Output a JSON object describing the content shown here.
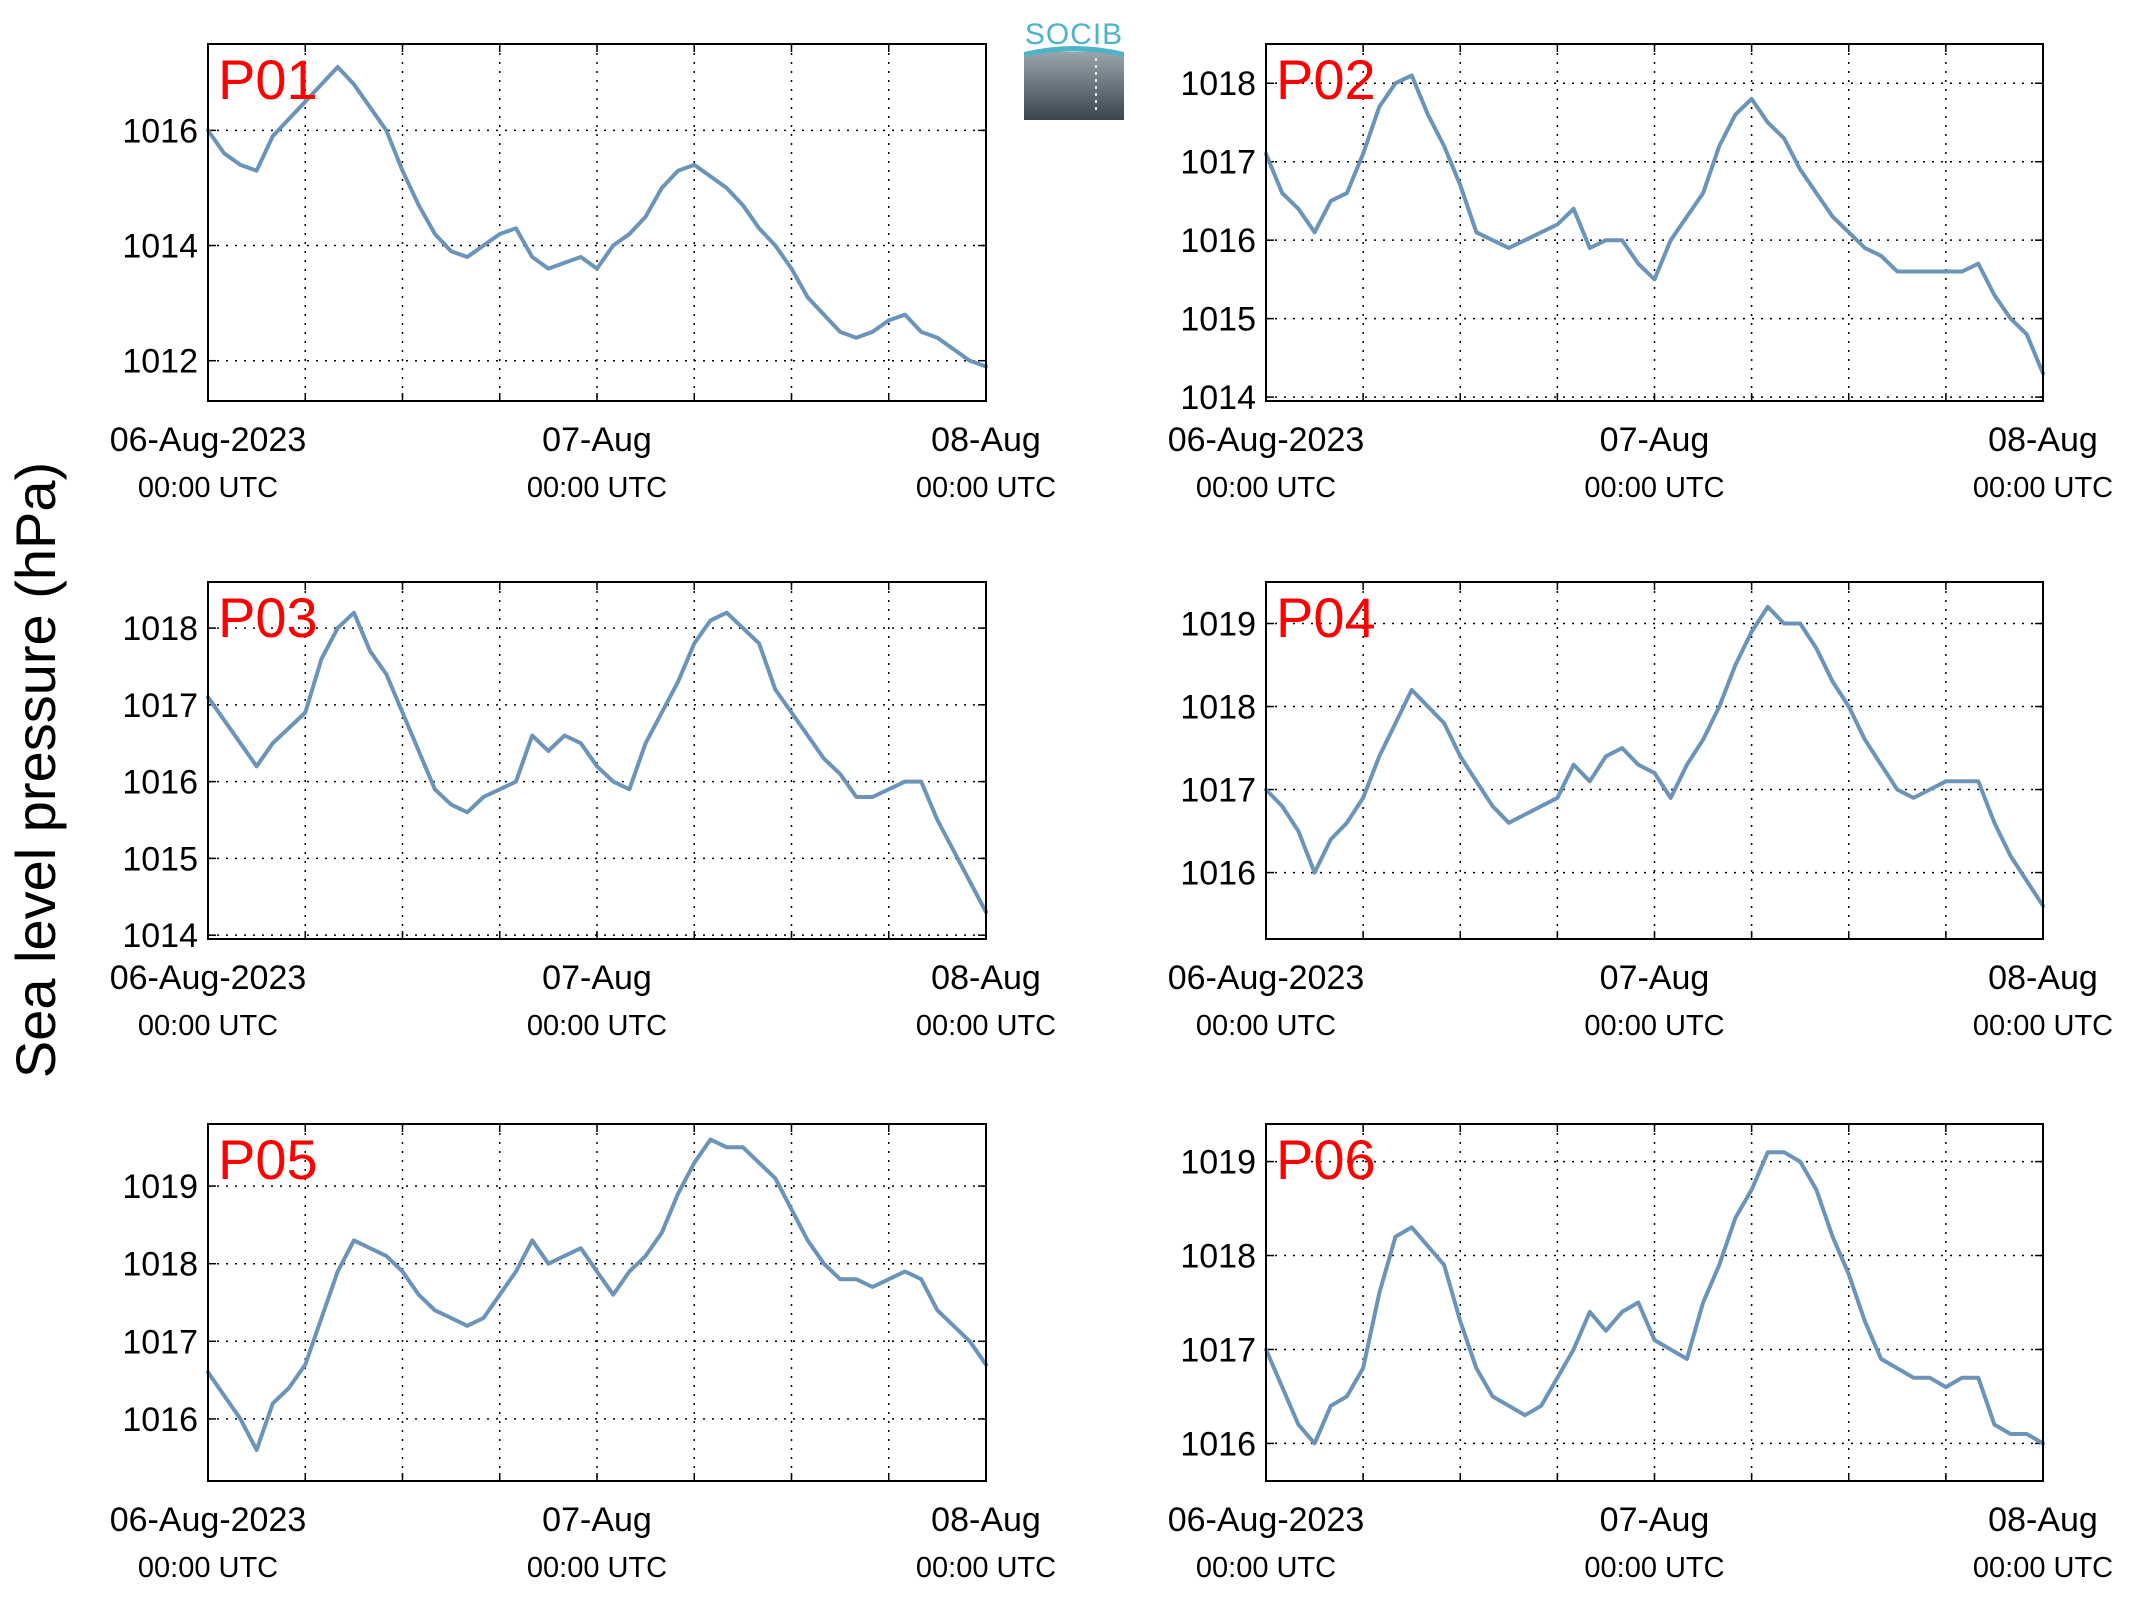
{
  "ylabel": "Sea level pressure (hPa)",
  "logo_text": "SOCIB",
  "colors": {
    "line": "#6b94b8",
    "panel_label": "#ff0000"
  },
  "x_tick_labels": [
    {
      "date": "06-Aug-2023",
      "time": "00:00 UTC"
    },
    {
      "date": "07-Aug",
      "time": "00:00 UTC"
    },
    {
      "date": "08-Aug",
      "time": "00:00 UTC"
    }
  ],
  "chart_data": [
    {
      "type": "line",
      "title": "P01",
      "xlim": [
        0,
        48
      ],
      "ylim": [
        1011.3,
        1017.5
      ],
      "yticks": [
        1012,
        1014,
        1016
      ],
      "x": [
        0,
        1,
        2,
        3,
        4,
        5,
        6,
        7,
        8,
        9,
        10,
        11,
        12,
        13,
        14,
        15,
        16,
        17,
        18,
        19,
        20,
        21,
        22,
        23,
        24,
        25,
        26,
        27,
        28,
        29,
        30,
        31,
        32,
        33,
        34,
        35,
        36,
        37,
        38,
        39,
        40,
        41,
        42,
        43,
        44,
        45,
        46,
        47,
        48
      ],
      "y": [
        1016.0,
        1015.6,
        1015.4,
        1015.3,
        1015.9,
        1016.2,
        1016.5,
        1016.8,
        1017.1,
        1016.8,
        1016.4,
        1016.0,
        1015.3,
        1014.7,
        1014.2,
        1013.9,
        1013.8,
        1014.0,
        1014.2,
        1014.3,
        1013.8,
        1013.6,
        1013.7,
        1013.8,
        1013.6,
        1014.0,
        1014.2,
        1014.5,
        1015.0,
        1015.3,
        1015.4,
        1015.2,
        1015.0,
        1014.7,
        1014.3,
        1014.0,
        1013.6,
        1013.1,
        1012.8,
        1012.5,
        1012.4,
        1012.5,
        1012.7,
        1012.8,
        1012.5,
        1012.4,
        1012.2,
        1012.0,
        1011.9
      ]
    },
    {
      "type": "line",
      "title": "P02",
      "xlim": [
        0,
        48
      ],
      "ylim": [
        1013.95,
        1018.5
      ],
      "yticks": [
        1014,
        1015,
        1016,
        1017,
        1018
      ],
      "x": [
        0,
        1,
        2,
        3,
        4,
        5,
        6,
        7,
        8,
        9,
        10,
        11,
        12,
        13,
        14,
        15,
        16,
        17,
        18,
        19,
        20,
        21,
        22,
        23,
        24,
        25,
        26,
        27,
        28,
        29,
        30,
        31,
        32,
        33,
        34,
        35,
        36,
        37,
        38,
        39,
        40,
        41,
        42,
        43,
        44,
        45,
        46,
        47,
        48
      ],
      "y": [
        1017.1,
        1016.6,
        1016.4,
        1016.1,
        1016.5,
        1016.6,
        1017.1,
        1017.7,
        1018.0,
        1018.1,
        1017.6,
        1017.2,
        1016.7,
        1016.1,
        1016.0,
        1015.9,
        1016.0,
        1016.1,
        1016.2,
        1016.4,
        1015.9,
        1016.0,
        1016.0,
        1015.7,
        1015.5,
        1016.0,
        1016.3,
        1016.6,
        1017.2,
        1017.6,
        1017.8,
        1017.5,
        1017.3,
        1016.9,
        1016.6,
        1016.3,
        1016.1,
        1015.9,
        1015.8,
        1015.6,
        1015.6,
        1015.6,
        1015.6,
        1015.6,
        1015.7,
        1015.3,
        1015.0,
        1014.8,
        1014.3
      ]
    },
    {
      "type": "line",
      "title": "P03",
      "xlim": [
        0,
        48
      ],
      "ylim": [
        1013.95,
        1018.6
      ],
      "yticks": [
        1014,
        1015,
        1016,
        1017,
        1018
      ],
      "x": [
        0,
        1,
        2,
        3,
        4,
        5,
        6,
        7,
        8,
        9,
        10,
        11,
        12,
        13,
        14,
        15,
        16,
        17,
        18,
        19,
        20,
        21,
        22,
        23,
        24,
        25,
        26,
        27,
        28,
        29,
        30,
        31,
        32,
        33,
        34,
        35,
        36,
        37,
        38,
        39,
        40,
        41,
        42,
        43,
        44,
        45,
        46,
        47,
        48
      ],
      "y": [
        1017.1,
        1016.8,
        1016.5,
        1016.2,
        1016.5,
        1016.7,
        1016.9,
        1017.6,
        1018.0,
        1018.2,
        1017.7,
        1017.4,
        1016.9,
        1016.4,
        1015.9,
        1015.7,
        1015.6,
        1015.8,
        1015.9,
        1016.0,
        1016.6,
        1016.4,
        1016.6,
        1016.5,
        1016.2,
        1016.0,
        1015.9,
        1016.5,
        1016.9,
        1017.3,
        1017.8,
        1018.1,
        1018.2,
        1018.0,
        1017.8,
        1017.2,
        1016.9,
        1016.6,
        1016.3,
        1016.1,
        1015.8,
        1015.8,
        1015.9,
        1016.0,
        1016.0,
        1015.5,
        1015.1,
        1014.7,
        1014.3
      ]
    },
    {
      "type": "line",
      "title": "P04",
      "xlim": [
        0,
        48
      ],
      "ylim": [
        1015.2,
        1019.5
      ],
      "yticks": [
        1016,
        1017,
        1018,
        1019
      ],
      "x": [
        0,
        1,
        2,
        3,
        4,
        5,
        6,
        7,
        8,
        9,
        10,
        11,
        12,
        13,
        14,
        15,
        16,
        17,
        18,
        19,
        20,
        21,
        22,
        23,
        24,
        25,
        26,
        27,
        28,
        29,
        30,
        31,
        32,
        33,
        34,
        35,
        36,
        37,
        38,
        39,
        40,
        41,
        42,
        43,
        44,
        45,
        46,
        47,
        48
      ],
      "y": [
        1017.0,
        1016.8,
        1016.5,
        1016.0,
        1016.4,
        1016.6,
        1016.9,
        1017.4,
        1017.8,
        1018.2,
        1018.0,
        1017.8,
        1017.4,
        1017.1,
        1016.8,
        1016.6,
        1016.7,
        1016.8,
        1016.9,
        1017.3,
        1017.1,
        1017.4,
        1017.5,
        1017.3,
        1017.2,
        1016.9,
        1017.3,
        1017.6,
        1018.0,
        1018.5,
        1018.9,
        1019.2,
        1019.0,
        1019.0,
        1018.7,
        1018.3,
        1018.0,
        1017.6,
        1017.3,
        1017.0,
        1016.9,
        1017.0,
        1017.1,
        1017.1,
        1017.1,
        1016.6,
        1016.2,
        1015.9,
        1015.6
      ]
    },
    {
      "type": "line",
      "title": "P05",
      "xlim": [
        0,
        48
      ],
      "ylim": [
        1015.2,
        1019.8
      ],
      "yticks": [
        1016,
        1017,
        1018,
        1019
      ],
      "x": [
        0,
        1,
        2,
        3,
        4,
        5,
        6,
        7,
        8,
        9,
        10,
        11,
        12,
        13,
        14,
        15,
        16,
        17,
        18,
        19,
        20,
        21,
        22,
        23,
        24,
        25,
        26,
        27,
        28,
        29,
        30,
        31,
        32,
        33,
        34,
        35,
        36,
        37,
        38,
        39,
        40,
        41,
        42,
        43,
        44,
        45,
        46,
        47,
        48
      ],
      "y": [
        1016.6,
        1016.3,
        1016.0,
        1015.6,
        1016.2,
        1016.4,
        1016.7,
        1017.3,
        1017.9,
        1018.3,
        1018.2,
        1018.1,
        1017.9,
        1017.6,
        1017.4,
        1017.3,
        1017.2,
        1017.3,
        1017.6,
        1017.9,
        1018.3,
        1018.0,
        1018.1,
        1018.2,
        1017.9,
        1017.6,
        1017.9,
        1018.1,
        1018.4,
        1018.9,
        1019.3,
        1019.6,
        1019.5,
        1019.5,
        1019.3,
        1019.1,
        1018.7,
        1018.3,
        1018.0,
        1017.8,
        1017.8,
        1017.7,
        1017.8,
        1017.9,
        1017.8,
        1017.4,
        1017.2,
        1017.0,
        1016.7
      ]
    },
    {
      "type": "line",
      "title": "P06",
      "xlim": [
        0,
        48
      ],
      "ylim": [
        1015.6,
        1019.4
      ],
      "yticks": [
        1016,
        1017,
        1018,
        1019
      ],
      "x": [
        0,
        1,
        2,
        3,
        4,
        5,
        6,
        7,
        8,
        9,
        10,
        11,
        12,
        13,
        14,
        15,
        16,
        17,
        18,
        19,
        20,
        21,
        22,
        23,
        24,
        25,
        26,
        27,
        28,
        29,
        30,
        31,
        32,
        33,
        34,
        35,
        36,
        37,
        38,
        39,
        40,
        41,
        42,
        43,
        44,
        45,
        46,
        47,
        48
      ],
      "y": [
        1017.0,
        1016.6,
        1016.2,
        1016.0,
        1016.4,
        1016.5,
        1016.8,
        1017.6,
        1018.2,
        1018.3,
        1018.1,
        1017.9,
        1017.3,
        1016.8,
        1016.5,
        1016.4,
        1016.3,
        1016.4,
        1016.7,
        1017.0,
        1017.4,
        1017.2,
        1017.4,
        1017.5,
        1017.1,
        1017.0,
        1016.9,
        1017.5,
        1017.9,
        1018.4,
        1018.7,
        1019.1,
        1019.1,
        1019.0,
        1018.7,
        1018.2,
        1017.8,
        1017.3,
        1016.9,
        1016.8,
        1016.7,
        1016.7,
        1016.6,
        1016.7,
        1016.7,
        1016.2,
        1016.1,
        1016.1,
        1016.0
      ]
    }
  ]
}
